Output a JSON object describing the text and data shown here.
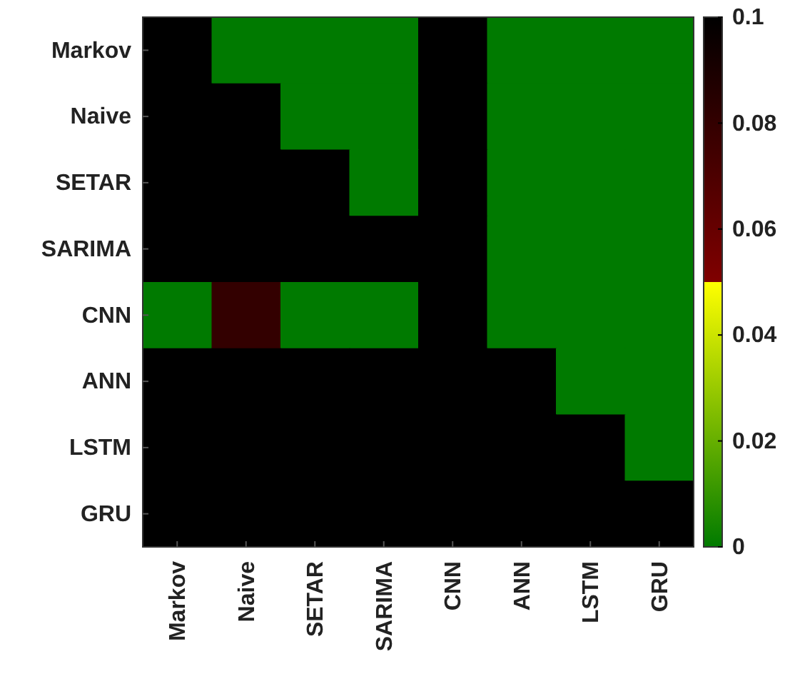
{
  "chart_data": {
    "type": "heatmap",
    "categories": [
      "Markov",
      "Naive",
      "SETAR",
      "SARIMA",
      "CNN",
      "ANN",
      "LSTM",
      "GRU"
    ],
    "y_categories": [
      "Markov",
      "Naive",
      "SETAR",
      "SARIMA",
      "CNN",
      "ANN",
      "LSTM",
      "GRU"
    ],
    "cells": [
      [
        0.1,
        0,
        0,
        0,
        0.1,
        0,
        0,
        0
      ],
      [
        0.1,
        0.1,
        0,
        0,
        0.1,
        0,
        0,
        0
      ],
      [
        0.1,
        0.1,
        0.1,
        0,
        0.1,
        0,
        0,
        0
      ],
      [
        0.1,
        0.1,
        0.1,
        0.1,
        0.1,
        0,
        0,
        0
      ],
      [
        0,
        0.08,
        0,
        0,
        0.1,
        0,
        0,
        0
      ],
      [
        0.1,
        0.1,
        0.1,
        0.1,
        0.1,
        0.1,
        0,
        0
      ],
      [
        0.1,
        0.1,
        0.1,
        0.1,
        0.1,
        0.1,
        0.1,
        0
      ],
      [
        0.1,
        0.1,
        0.1,
        0.1,
        0.1,
        0.1,
        0.1,
        0.1
      ]
    ],
    "clim": [
      0,
      0.1
    ],
    "cticks": [
      0,
      0.02,
      0.04,
      0.06,
      0.08,
      0.1
    ]
  }
}
